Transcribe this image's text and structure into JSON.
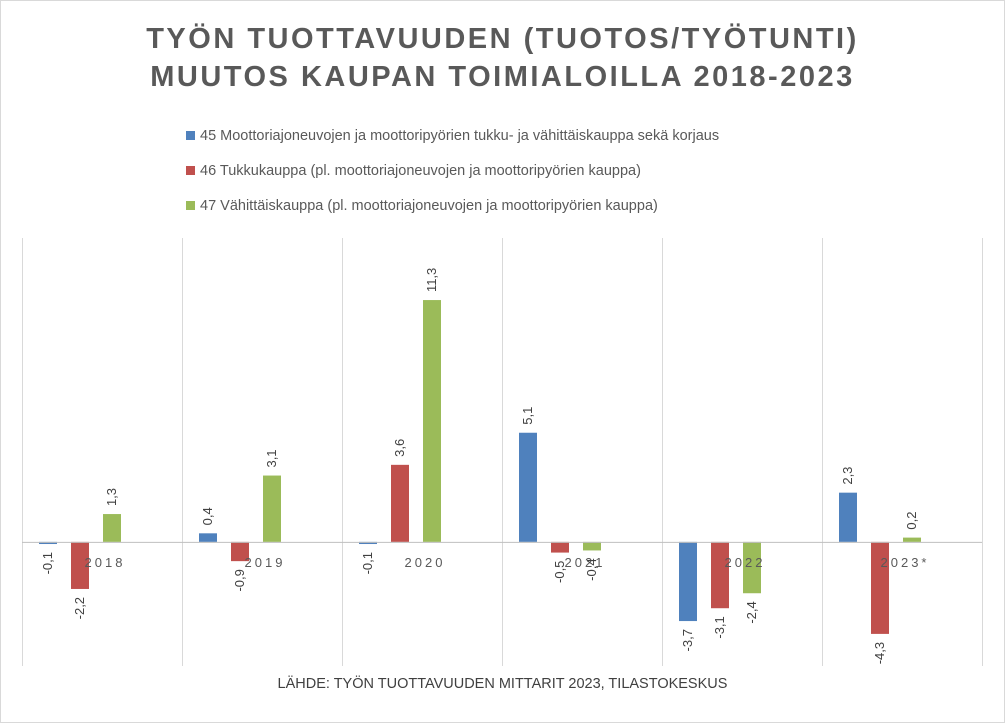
{
  "colors": {
    "s45": "#4f81bd",
    "s46": "#c0504d",
    "s47": "#9bbb59"
  },
  "chart_data": {
    "type": "bar",
    "title": "TYÖN TUOTTAVUUDEN (TUOTOS/TYÖTUNTI) MUUTOS KAUPAN TOIMIALOILLA 2018-2023",
    "title_lines": [
      "TYÖN TUOTTAVUUDEN (TUOTOS/TYÖTUNTI)",
      "MUUTOS KAUPAN TOIMIALOILLA 2018-2023"
    ],
    "categories": [
      "2018",
      "2019",
      "2020",
      "2021",
      "2022",
      "2023*"
    ],
    "series": [
      {
        "name": "45 Moottoriajoneuvojen ja moottoripyörien tukku- ja vähittäiskauppa sekä korjaus",
        "values": [
          -0.1,
          0.4,
          -0.1,
          5.1,
          -3.7,
          2.3
        ],
        "labels": [
          "-0,1",
          "0,4",
          "-0,1",
          "5,1",
          "-3,7",
          "2,3"
        ]
      },
      {
        "name": "46 Tukkukauppa (pl. moottoriajoneuvojen ja moottoripyörien kauppa)",
        "values": [
          -2.2,
          -0.9,
          3.6,
          -0.5,
          -3.1,
          -4.3
        ],
        "labels": [
          "-2,2",
          "-0,9",
          "3,6",
          "-0,5",
          "-3,1",
          "-4,3"
        ]
      },
      {
        "name": "47 Vähittäiskauppa (pl. moottoriajoneuvojen ja moottoripyörien kauppa)",
        "values": [
          1.3,
          3.1,
          11.3,
          -0.4,
          -2.4,
          0.2
        ],
        "labels": [
          "1,3",
          "3,1",
          "11,3",
          "-0,4",
          "-2,4",
          "0,2"
        ]
      }
    ],
    "ylim": [
      -5.8,
      14.2
    ],
    "xlabel": "",
    "ylabel": "",
    "grid": "vertical",
    "legend": "top",
    "data_labels": "rotated"
  },
  "source": "LÄHDE: TYÖN TUOTTAVUUDEN MITTARIT 2023, TILASTOKESKUS"
}
